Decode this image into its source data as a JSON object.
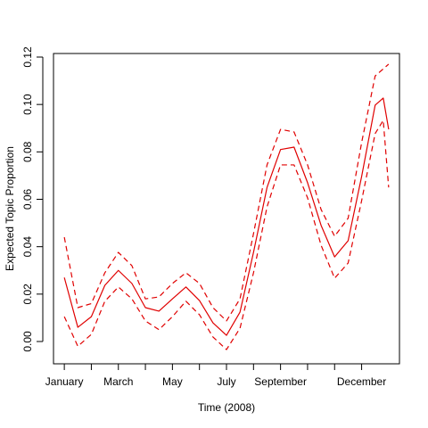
{
  "chart_data": {
    "type": "line",
    "xlabel": "Time (2008)",
    "ylabel": "Expected Topic Proportion",
    "x": [
      1,
      1.5,
      2,
      2.5,
      3,
      3.5,
      4,
      4.5,
      5,
      5.5,
      6,
      6.5,
      7,
      7.5,
      8,
      8.5,
      9,
      9.5,
      10,
      10.5,
      11,
      11.5,
      12,
      12.5,
      12.8,
      13
    ],
    "series": [
      {
        "color": "#e00000",
        "dashed": false,
        "values": [
          0.027,
          0.006,
          0.0105,
          0.0237,
          0.03,
          0.0245,
          0.0143,
          0.0128,
          0.018,
          0.023,
          0.0173,
          0.0079,
          0.0026,
          0.0124,
          0.0376,
          0.065,
          0.081,
          0.082,
          0.067,
          0.049,
          0.0357,
          0.0425,
          0.0696,
          0.0997,
          0.1027,
          0.0895
        ]
      },
      {
        "color": "#e00000",
        "dashed": true,
        "values": [
          0.044,
          0.0143,
          0.016,
          0.029,
          0.0376,
          0.032,
          0.018,
          0.0188,
          0.0245,
          0.029,
          0.0245,
          0.0143,
          0.0087,
          0.018,
          0.0455,
          0.0745,
          0.0895,
          0.0884,
          0.0745,
          0.0557,
          0.0444,
          0.052,
          0.0839,
          0.112,
          0.115,
          0.117
        ]
      },
      {
        "color": "#e00000",
        "dashed": true,
        "values": [
          0.0105,
          -0.002,
          0.003,
          0.017,
          0.023,
          0.018,
          0.0087,
          0.005,
          0.0105,
          0.017,
          0.0113,
          0.0019,
          -0.0034,
          0.0056,
          0.029,
          0.0568,
          0.0745,
          0.0745,
          0.0606,
          0.0406,
          0.0267,
          0.0331,
          0.0594,
          0.0877,
          0.0933,
          0.065
        ]
      }
    ],
    "xlim": [
      0.6,
      13.4
    ],
    "xticks": [
      {
        "value": 1,
        "label": "January"
      },
      {
        "value": 2,
        "label": null
      },
      {
        "value": 3,
        "label": "March"
      },
      {
        "value": 4,
        "label": null
      },
      {
        "value": 5,
        "label": "May"
      },
      {
        "value": 6,
        "label": null
      },
      {
        "value": 7,
        "label": "July"
      },
      {
        "value": 8,
        "label": null
      },
      {
        "value": 9,
        "label": "September"
      },
      {
        "value": 10,
        "label": null
      },
      {
        "value": 11,
        "label": null
      },
      {
        "value": 12,
        "label": "December"
      }
    ],
    "ylim": [
      -0.0094,
      0.1215
    ],
    "yticks": [
      {
        "value": 0,
        "label": "0.00"
      },
      {
        "value": 0.02,
        "label": "0.02"
      },
      {
        "value": 0.04,
        "label": "0.04"
      },
      {
        "value": 0.06,
        "label": "0.06"
      },
      {
        "value": 0.08,
        "label": "0.08"
      },
      {
        "value": 0.1,
        "label": "0.10"
      },
      {
        "value": 0.12,
        "label": "0.12"
      }
    ]
  }
}
